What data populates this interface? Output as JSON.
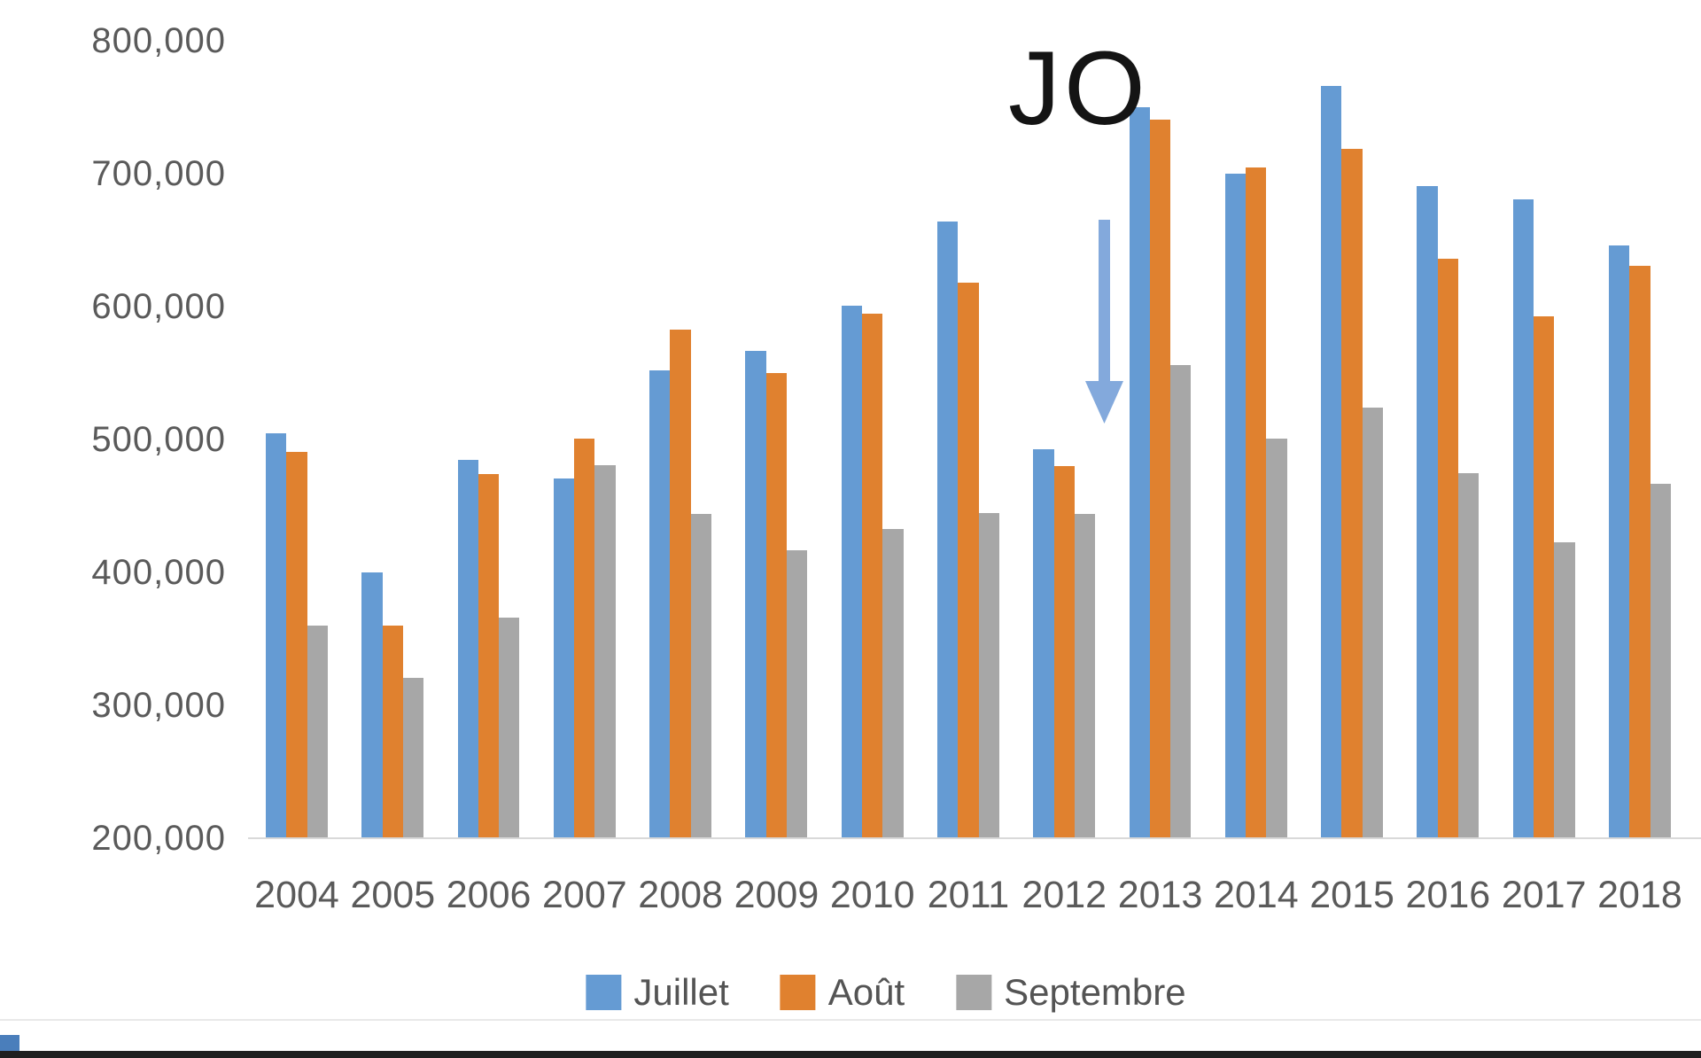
{
  "chart_data": {
    "type": "bar",
    "title": "",
    "xlabel": "",
    "ylabel": "",
    "ylim": [
      200000,
      800000
    ],
    "grid": false,
    "legend_position": "bottom",
    "categories": [
      "2004",
      "2005",
      "2006",
      "2007",
      "2008",
      "2009",
      "2010",
      "2011",
      "2012",
      "2013",
      "2014",
      "2015",
      "2016",
      "2017",
      "2018"
    ],
    "series": [
      {
        "name": "Juillet",
        "color": "#659bd3",
        "values": [
          505000,
          400000,
          485000,
          471000,
          552000,
          567000,
          601000,
          664000,
          493000,
          750000,
          700000,
          766000,
          691000,
          681000,
          646000
        ]
      },
      {
        "name": "Août",
        "color": "#e0812f",
        "values": [
          491000,
          360000,
          474000,
          501000,
          583000,
          550000,
          595000,
          618000,
          480000,
          741000,
          705000,
          719000,
          636000,
          593000,
          631000
        ]
      },
      {
        "name": "Septembre",
        "color": "#a7a7a7",
        "values": [
          360000,
          321000,
          366000,
          481000,
          444000,
          417000,
          433000,
          445000,
          444000,
          556000,
          501000,
          524000,
          475000,
          423000,
          467000
        ]
      }
    ],
    "yticks": [
      {
        "value": 800000,
        "label": "800,000"
      },
      {
        "value": 700000,
        "label": "700,000"
      },
      {
        "value": 600000,
        "label": "600,000"
      },
      {
        "value": 500000,
        "label": "500,000"
      },
      {
        "value": 400000,
        "label": "400,000"
      },
      {
        "value": 300000,
        "label": "300,000"
      },
      {
        "value": 200000,
        "label": "200,000"
      }
    ],
    "annotation": {
      "text": "JO",
      "arrow": {
        "direction": "down",
        "color": "#83a9dc",
        "points_at_category": "2012"
      }
    }
  },
  "legend": {
    "items": [
      {
        "label": "Juillet",
        "color": "#659bd3"
      },
      {
        "label": "Août",
        "color": "#e0812f"
      },
      {
        "label": "Septembre",
        "color": "#a7a7a7"
      }
    ]
  },
  "colors": {
    "axis_line": "#d9d9d9",
    "tick_text": "#5a5a5a",
    "annotation_text": "#141414",
    "arrow": "#83a9dc",
    "bottom_border": "#1f1f1f",
    "corner_accent": "#4a7ebb"
  }
}
